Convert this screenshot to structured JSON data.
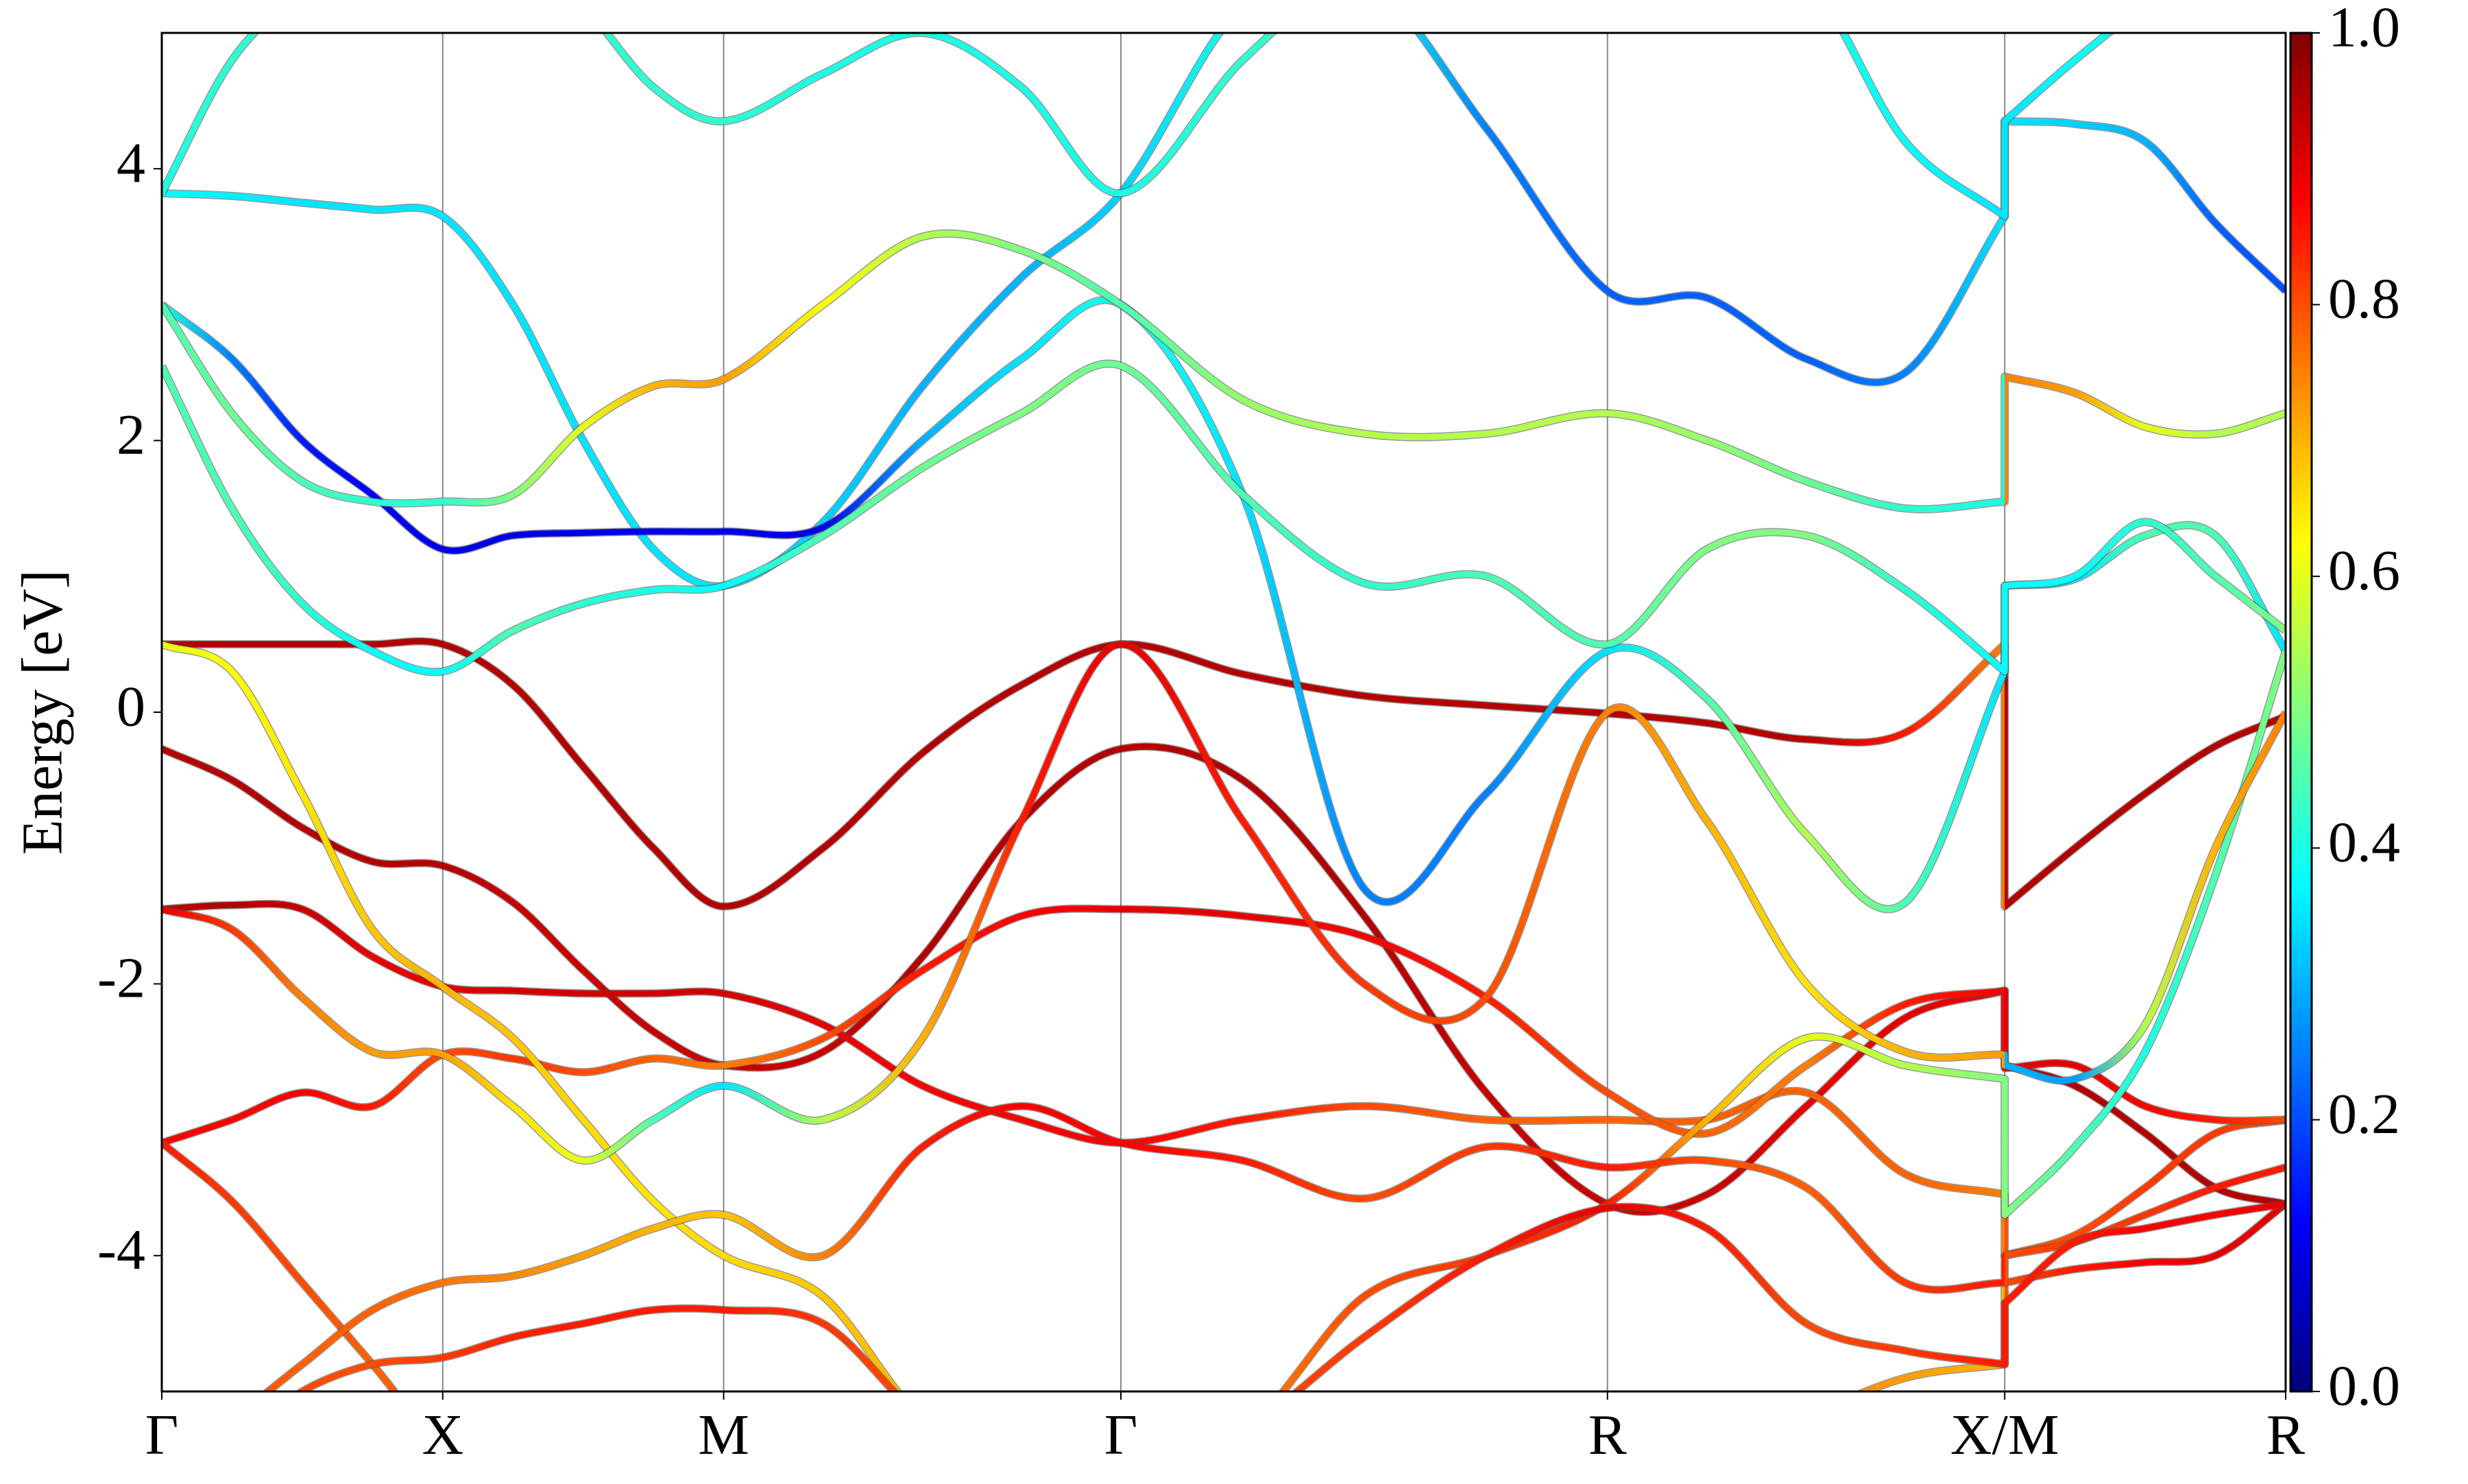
{
  "chart_data": {
    "type": "line",
    "ylabel": "Energy [eV]",
    "colormap": "jet",
    "x": [
      0,
      0.125,
      0.25,
      0.375,
      0.5,
      0.625,
      0.75,
      0.875,
      1.0,
      1.177,
      1.354,
      1.53,
      1.707,
      1.924,
      2.14,
      2.357,
      2.573,
      2.75,
      2.927,
      3.103,
      3.28,
      3.28,
      3.405,
      3.53,
      3.655,
      3.78
    ],
    "xlim": [
      0,
      3.78
    ],
    "xticks": [
      {
        "value": 0,
        "label": "Γ"
      },
      {
        "value": 0.5,
        "label": "X"
      },
      {
        "value": 1.0,
        "label": "M"
      },
      {
        "value": 1.707,
        "label": "Γ"
      },
      {
        "value": 2.573,
        "label": "R"
      },
      {
        "value": 3.28,
        "label": "X/M"
      },
      {
        "value": 3.78,
        "label": "R"
      }
    ],
    "ylim": [
      -5,
      5
    ],
    "yticks": [
      -4,
      -2,
      0,
      2,
      4
    ],
    "colorbar": {
      "lim": [
        0,
        1
      ],
      "ticks": [
        {
          "value": 0,
          "label": "0.0"
        },
        0.2,
        0.4,
        0.6,
        0.8,
        {
          "value": 1,
          "label": "1.0"
        }
      ]
    },
    "series": [
      {
        "values": [
          0.5,
          0.5,
          0.5,
          0.5,
          0.5,
          0.2,
          -0.4,
          -1.0,
          -1.43,
          -1.0,
          -0.3,
          0.2,
          0.5,
          0.28,
          0.12,
          0.05,
          -0.01,
          -0.08,
          -0.2,
          -0.15,
          0.5,
          -1.43,
          -1.0,
          -0.6,
          -0.25,
          -0.03
        ],
        "weights": [
          0.95,
          0.95,
          0.95,
          0.95,
          0.95,
          0.95,
          0.95,
          0.95,
          0.95,
          0.95,
          0.95,
          0.95,
          0.95,
          0.95,
          0.95,
          0.95,
          0.95,
          0.95,
          0.95,
          0.85,
          0.75,
          0.95,
          0.95,
          0.95,
          0.95,
          0.95
        ]
      },
      {
        "values": [
          -0.27,
          -0.5,
          -0.85,
          -1.1,
          -1.13,
          -1.4,
          -1.9,
          -2.35,
          -2.6,
          -2.5,
          -1.8,
          -0.8,
          -0.27,
          -0.5,
          -1.5,
          -2.8,
          -3.62,
          -3.55,
          -2.9,
          -2.25,
          -2.05,
          -2.6,
          -2.75,
          -3.1,
          -3.5,
          -3.62
        ],
        "weights": [
          0.95,
          0.95,
          0.95,
          0.95,
          0.95,
          0.93,
          0.93,
          0.93,
          0.93,
          0.93,
          0.95,
          0.95,
          0.95,
          0.95,
          0.95,
          0.93,
          0.93,
          0.93,
          0.9,
          0.9,
          0.9,
          0.95,
          0.95,
          0.95,
          0.95,
          0.95
        ]
      },
      {
        "values": [
          -1.45,
          -1.42,
          -1.45,
          -1.8,
          -2.02,
          -2.05,
          -2.07,
          -2.07,
          -2.07,
          -2.3,
          -2.75,
          -3.0,
          -3.17,
          -3.0,
          -2.9,
          -3.0,
          -3.0,
          -3.0,
          -2.8,
          -3.4,
          -3.55,
          -4.0,
          -3.85,
          -3.5,
          -3.1,
          -3.0
        ],
        "weights": [
          0.95,
          0.95,
          0.93,
          0.9,
          0.9,
          0.92,
          0.92,
          0.92,
          0.92,
          0.9,
          0.88,
          0.88,
          0.88,
          0.85,
          0.8,
          0.78,
          0.78,
          0.78,
          0.78,
          0.78,
          0.75,
          0.8,
          0.8,
          0.82,
          0.82,
          0.8
        ]
      },
      {
        "values": [
          -3.17,
          -3.0,
          -2.8,
          -2.9,
          -2.52,
          -2.55,
          -2.65,
          -2.55,
          -2.6,
          -2.4,
          -1.9,
          -1.5,
          -1.45,
          -1.5,
          -1.65,
          -2.1,
          -2.8,
          -3.1,
          -2.6,
          -2.15,
          -2.05,
          -2.62,
          -2.6,
          -2.9,
          -3.0,
          -3.0
        ],
        "weights": [
          0.88,
          0.88,
          0.88,
          0.85,
          0.8,
          0.82,
          0.8,
          0.78,
          0.75,
          0.8,
          0.85,
          0.88,
          0.9,
          0.9,
          0.88,
          0.85,
          0.8,
          0.78,
          0.75,
          0.85,
          0.88,
          0.9,
          0.9,
          0.88,
          0.85,
          0.8
        ]
      },
      {
        "values": [
          -3.17,
          -3.6,
          -4.2,
          -4.8,
          -5.4,
          -5.6,
          -5.8,
          -5.8,
          -5.8,
          -5.7,
          -5.5,
          -5.2,
          -5.1,
          -5.2,
          -5.6,
          -5.8,
          -5.8,
          -5.6,
          -5.2,
          -4.9,
          -4.8,
          -4.2,
          -4.1,
          -4.05,
          -4.0,
          -3.62
        ],
        "weights": [
          0.85,
          0.82,
          0.8,
          0.78,
          0.78,
          0.78,
          0.78,
          0.78,
          0.78,
          0.78,
          0.78,
          0.78,
          0.78,
          0.78,
          0.78,
          0.78,
          0.78,
          0.78,
          0.75,
          0.72,
          0.7,
          0.8,
          0.85,
          0.88,
          0.9,
          0.9
        ]
      },
      {
        "values": [
          3.82,
          3.8,
          3.75,
          3.7,
          3.65,
          3.0,
          2.0,
          1.2,
          0.93,
          1.4,
          2.4,
          3.2,
          3.82,
          5.2,
          5.4,
          4.3,
          3.1,
          3.05,
          2.6,
          2.5,
          3.65,
          4.35,
          4.33,
          4.2,
          3.6,
          3.1
        ],
        "weights": [
          0.38,
          0.36,
          0.35,
          0.35,
          0.35,
          0.35,
          0.35,
          0.35,
          0.35,
          0.33,
          0.3,
          0.3,
          0.33,
          0.4,
          0.4,
          0.25,
          0.22,
          0.22,
          0.22,
          0.25,
          0.35,
          0.35,
          0.33,
          0.3,
          0.22,
          0.2
        ]
      },
      {
        "values": [
          3.0,
          2.6,
          2.0,
          1.6,
          1.2,
          1.3,
          1.32,
          1.33,
          1.33,
          1.36,
          2.0,
          2.6,
          3.0,
          1.6,
          -1.3,
          -0.6,
          0.45,
          0.1,
          -0.9,
          -1.4,
          0.3,
          0.93,
          0.98,
          1.3,
          1.3,
          0.45
        ],
        "weights": [
          0.4,
          0.25,
          0.15,
          0.12,
          0.1,
          0.1,
          0.1,
          0.1,
          0.1,
          0.1,
          0.3,
          0.35,
          0.4,
          0.35,
          0.25,
          0.25,
          0.35,
          0.45,
          0.55,
          0.45,
          0.35,
          0.35,
          0.35,
          0.45,
          0.45,
          0.35
        ]
      },
      {
        "values": [
          3.0,
          2.2,
          1.7,
          1.55,
          1.55,
          1.6,
          2.1,
          2.4,
          2.45,
          3.0,
          3.5,
          3.4,
          3.0,
          2.3,
          2.05,
          2.05,
          2.2,
          2.0,
          1.7,
          1.5,
          1.55,
          2.47,
          2.35,
          2.1,
          2.05,
          2.2
        ],
        "weights": [
          0.45,
          0.48,
          0.45,
          0.42,
          0.42,
          0.5,
          0.6,
          0.7,
          0.72,
          0.62,
          0.55,
          0.5,
          0.45,
          0.52,
          0.55,
          0.55,
          0.55,
          0.52,
          0.48,
          0.42,
          0.4,
          0.75,
          0.72,
          0.6,
          0.55,
          0.55
        ]
      },
      {
        "values": [
          2.55,
          1.5,
          0.8,
          0.45,
          0.3,
          0.6,
          0.8,
          0.9,
          0.93,
          1.3,
          1.8,
          2.2,
          2.55,
          1.6,
          0.95,
          1.0,
          0.5,
          1.2,
          1.3,
          0.9,
          0.3,
          0.93,
          1.0,
          1.4,
          1.0,
          0.6
        ],
        "weights": [
          0.45,
          0.45,
          0.42,
          0.38,
          0.38,
          0.45,
          0.42,
          0.4,
          0.38,
          0.45,
          0.48,
          0.5,
          0.48,
          0.45,
          0.42,
          0.45,
          0.45,
          0.5,
          0.5,
          0.42,
          0.38,
          0.38,
          0.38,
          0.42,
          0.45,
          0.5
        ]
      },
      {
        "values": [
          0.5,
          0.3,
          -0.6,
          -1.6,
          -2.02,
          -2.4,
          -3.0,
          -3.6,
          -4.0,
          -4.3,
          -5.2,
          -5.5,
          -5.5,
          -5.3,
          -4.3,
          -4.0,
          -3.62,
          -3.0,
          -2.4,
          -2.6,
          -2.7,
          -3.7,
          -3.2,
          -2.5,
          -1.2,
          0.45
        ],
        "weights": [
          0.6,
          0.62,
          0.65,
          0.68,
          0.7,
          0.68,
          0.66,
          0.65,
          0.66,
          0.68,
          0.7,
          0.7,
          0.7,
          0.75,
          0.8,
          0.82,
          0.85,
          0.7,
          0.6,
          0.55,
          0.5,
          0.5,
          0.45,
          0.4,
          0.45,
          0.5
        ]
      },
      {
        "values": [
          -1.45,
          -1.6,
          -2.1,
          -2.5,
          -2.52,
          -2.9,
          -3.3,
          -3.0,
          -2.75,
          -3.0,
          -2.4,
          -0.8,
          0.5,
          -0.8,
          -2.0,
          -2.1,
          0.0,
          -0.8,
          -2.0,
          -2.5,
          -2.52,
          -2.6,
          -2.7,
          -2.3,
          -1.0,
          0.0
        ],
        "weights": [
          0.9,
          0.82,
          0.75,
          0.72,
          0.72,
          0.65,
          0.6,
          0.45,
          0.35,
          0.55,
          0.7,
          0.85,
          0.9,
          0.85,
          0.82,
          0.8,
          0.75,
          0.7,
          0.65,
          0.7,
          0.72,
          0.3,
          0.28,
          0.55,
          0.7,
          0.75
        ]
      },
      {
        "values": [
          -5.5,
          -5.2,
          -4.8,
          -4.4,
          -4.2,
          -4.15,
          -4.0,
          -3.8,
          -3.7,
          -4.0,
          -3.2,
          -2.9,
          -3.17,
          -3.3,
          -3.58,
          -3.2,
          -3.35,
          -3.3,
          -3.5,
          -4.2,
          -4.2,
          -4.0,
          -3.9,
          -3.7,
          -3.5,
          -3.35
        ],
        "weights": [
          0.8,
          0.8,
          0.78,
          0.78,
          0.76,
          0.74,
          0.72,
          0.7,
          0.68,
          0.75,
          0.85,
          0.88,
          0.88,
          0.85,
          0.8,
          0.82,
          0.85,
          0.8,
          0.78,
          0.82,
          0.85,
          0.8,
          0.82,
          0.82,
          0.85,
          0.85
        ]
      },
      {
        "values": [
          -5.5,
          -5.4,
          -5.0,
          -4.8,
          -4.75,
          -4.6,
          -4.5,
          -4.4,
          -4.4,
          -4.5,
          -5.2,
          -5.6,
          -5.7,
          -5.3,
          -4.6,
          -4.0,
          -3.65,
          -3.8,
          -4.5,
          -4.7,
          -4.8,
          -4.35,
          -3.9,
          -3.8,
          -3.7,
          -3.62
        ],
        "weights": [
          0.8,
          0.8,
          0.8,
          0.8,
          0.82,
          0.84,
          0.85,
          0.85,
          0.85,
          0.82,
          0.8,
          0.8,
          0.8,
          0.8,
          0.82,
          0.85,
          0.9,
          0.85,
          0.8,
          0.82,
          0.85,
          0.85,
          0.85,
          0.88,
          0.88,
          0.9
        ]
      },
      {
        "values": [
          3.82,
          4.8,
          5.3,
          5.6,
          5.8,
          5.6,
          5.2,
          4.6,
          4.35,
          4.7,
          5.0,
          4.6,
          3.82,
          4.8,
          5.5,
          5.5,
          5.5,
          5.5,
          5.4,
          4.2,
          3.65,
          4.35,
          4.8,
          5.2,
          5.5,
          5.6
        ],
        "weights": [
          0.4,
          0.42,
          0.42,
          0.42,
          0.42,
          0.42,
          0.42,
          0.42,
          0.42,
          0.4,
          0.4,
          0.4,
          0.4,
          0.42,
          0.42,
          0.42,
          0.42,
          0.42,
          0.4,
          0.38,
          0.35,
          0.35,
          0.38,
          0.4,
          0.42,
          0.42
        ]
      }
    ]
  }
}
